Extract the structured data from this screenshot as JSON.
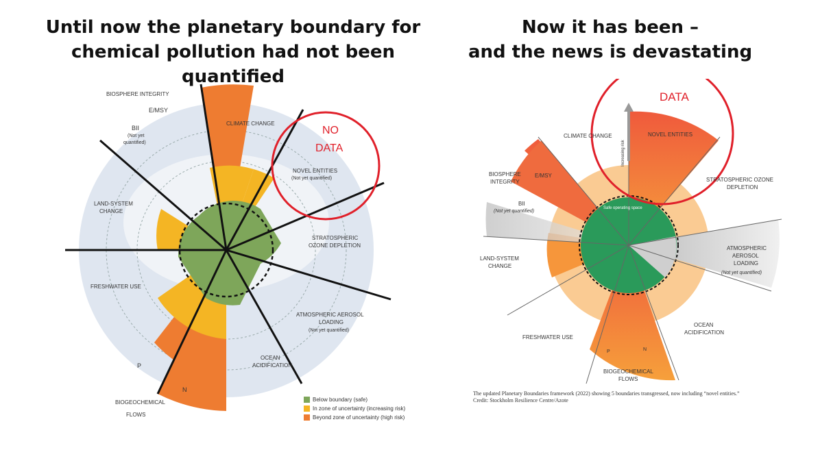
{
  "left_heading": {
    "line1": "Until now the planetary boundary for",
    "line2": "chemical pollution had not been quantified"
  },
  "right_heading": {
    "line1": "Now it has been –",
    "line2": "and the news is devastating"
  },
  "left_labels": {
    "biosphere": "BIOSPHERE INTEGRITY",
    "emsy": "E/MSY",
    "bii": "BII",
    "bii_note1": "(Not yet",
    "bii_note2": "quantified)",
    "climate": "CLIMATE CHANGE",
    "no_data1": "NO",
    "no_data2": "DATA",
    "novel": "NOVEL ENTITIES",
    "novel_note": "(Not yet quantified)",
    "land1": "LAND-SYSTEM",
    "land2": "CHANGE",
    "ozone1": "STRATOSPHERIC",
    "ozone2": "OZONE DEPLETION",
    "fresh": "FRESHWATER USE",
    "aerosol1": "ATMOSPHERIC AEROSOL",
    "aerosol2": "LOADING",
    "aerosol_note": "(Not yet quantified)",
    "ocean1": "OCEAN",
    "ocean2": "ACIDIFICATION",
    "p": "P",
    "n": "N",
    "bio1": "BIOGEOCHEMICAL",
    "bio2": "FLOWS"
  },
  "legend": [
    {
      "label": "Below boundary (safe)",
      "color": "#7ea65a"
    },
    {
      "label": "In zone of uncertainty (increasing risk)",
      "color": "#f4b524"
    },
    {
      "label": "Beyond zone of uncertainty (high risk)",
      "color": "#ee7c31"
    }
  ],
  "right_labels": {
    "data": "DATA",
    "climate": "CLIMATE CHANGE",
    "novel": "NOVEL ENTITIES",
    "increasing_risk": "Increasing risk",
    "biosphere1": "BIOSPHERE",
    "biosphere2": "INTEGRITY",
    "emsy": "E/MSY",
    "bii": "BII",
    "bii_note": "(Not yet quantified)",
    "ozone1": "STRATOSPHERIC OZONE",
    "ozone2": "DEPLETION",
    "safe": "Safe operating space",
    "land1": "LAND-SYSTEM",
    "land2": "CHANGE",
    "aerosol1": "ATMOSPHERIC",
    "aerosol2": "AEROSOL",
    "aerosol3": "LOADING",
    "aerosol_note": "(Not yet quantified)",
    "ocean1": "OCEAN",
    "ocean2": "ACIDIFICATION",
    "fresh": "FRESHWATER USE",
    "p": "P",
    "n": "N",
    "bio1": "BIOGEOCHEMICAL",
    "bio2": "FLOWS"
  },
  "caption": {
    "line1": "The updated Planetary Boundaries framework (2022) showing 5 boundaries transgressed, now including “novel entities.”",
    "line2": "Credit: Stockholm Resilience Centre/Azote"
  },
  "colors": {
    "safe_green": "#7ea65a",
    "uncertain_yellow": "#f4b524",
    "high_orange": "#ee7c31",
    "annotation_red": "#e0202a",
    "right_green": "#2a9a5a"
  }
}
